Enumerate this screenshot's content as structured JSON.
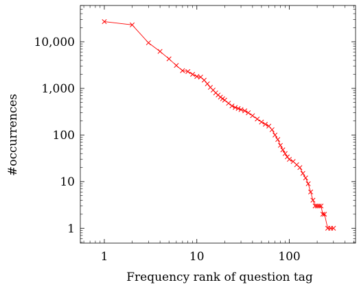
{
  "chart_data": {
    "type": "line",
    "title": "",
    "xlabel": "Frequency rank of question tag",
    "ylabel": "#occurrences",
    "x_scale": "log",
    "y_scale": "log",
    "xlim": [
      0.55,
      520
    ],
    "ylim": [
      0.48,
      60000
    ],
    "x_ticks": [
      1,
      10,
      100
    ],
    "x_tick_labels": [
      "1",
      "10",
      "100"
    ],
    "y_ticks": [
      1,
      10,
      100,
      1000,
      10000
    ],
    "y_tick_labels": [
      "1",
      "10",
      "100",
      "1,000",
      "10,000"
    ],
    "grid": false,
    "legend": false,
    "series": [
      {
        "marker": "x",
        "color": "#ff0000",
        "x": [
          1,
          2,
          3,
          4,
          5,
          6,
          7,
          8,
          9,
          10,
          11,
          12,
          13,
          14,
          15,
          16,
          17,
          18,
          19,
          20,
          22,
          24,
          26,
          28,
          30,
          33,
          36,
          40,
          45,
          50,
          55,
          60,
          65,
          70,
          75,
          80,
          85,
          90,
          95,
          100,
          110,
          120,
          130,
          140,
          150,
          160,
          170,
          180,
          190,
          200,
          210,
          220,
          230,
          240,
          260,
          280,
          300
        ],
        "y": [
          27000,
          23000,
          9500,
          6200,
          4300,
          3100,
          2400,
          2300,
          2000,
          1800,
          1750,
          1500,
          1250,
          1050,
          920,
          800,
          720,
          650,
          600,
          560,
          480,
          420,
          390,
          370,
          350,
          330,
          300,
          260,
          220,
          190,
          170,
          155,
          130,
          100,
          80,
          60,
          48,
          40,
          34,
          30,
          27,
          23,
          20,
          15,
          12,
          9,
          6,
          4,
          3,
          3,
          3,
          3,
          2,
          2,
          1,
          1,
          1
        ]
      }
    ]
  }
}
